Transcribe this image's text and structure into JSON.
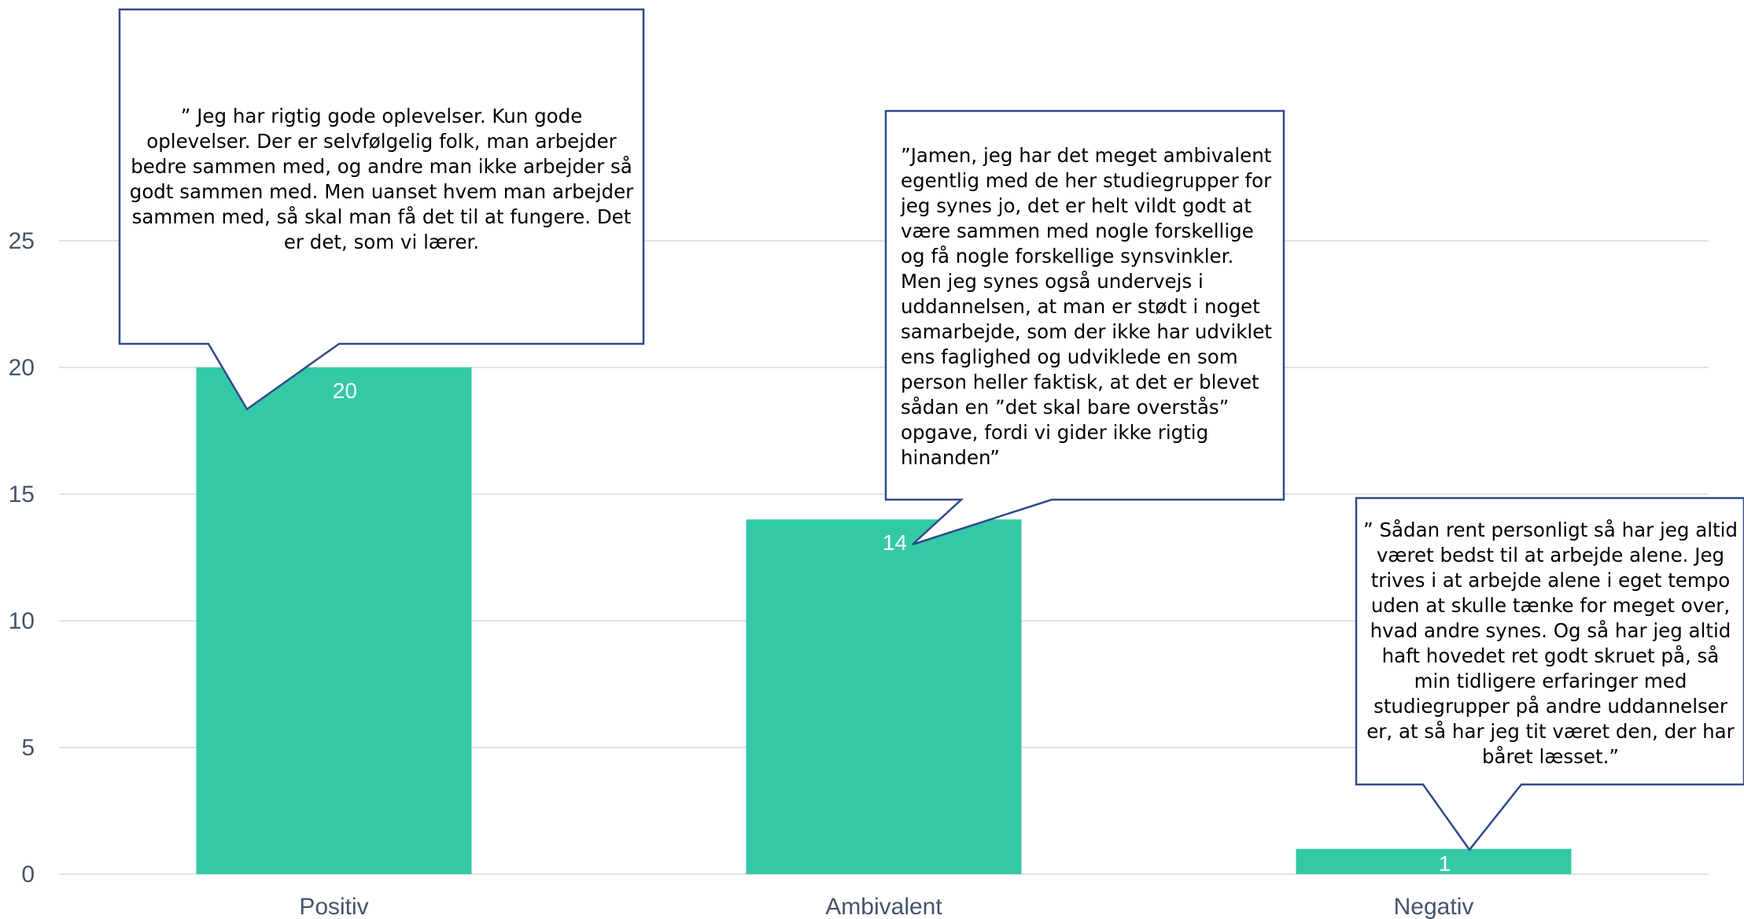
{
  "chart_data": {
    "type": "bar",
    "categories": [
      "Positiv",
      "Ambivalent",
      "Negativ"
    ],
    "values": [
      20,
      14,
      1
    ],
    "data_labels": [
      "20",
      "14",
      "1"
    ],
    "yticks": [
      "0",
      "5",
      "10",
      "15",
      "20",
      "25"
    ],
    "ylim": [
      0,
      25
    ],
    "grid": true,
    "bar_color": "#33c9a7",
    "gridline_color": "#d9d9d9",
    "axis_text_color": "#44546a",
    "callout_border_color": "#2f4a8a"
  },
  "callouts": [
    {
      "category": "Positiv",
      "lines": [
        "” Jeg har rigtig gode oplevelser. Kun gode",
        "oplevelser. Der er selvfølgelig folk, man arbejder",
        "bedre sammen med, og andre man ikke arbejder så",
        "godt sammen med. Men uanset hvem man arbejder",
        "sammen med, så skal man få det til at fungere. Det",
        "er det, som vi lærer."
      ]
    },
    {
      "category": "Ambivalent",
      "lines": [
        "”Jamen, jeg har det meget ambivalent",
        "egentlig med de her studiegrupper for",
        "jeg synes jo, det er helt vildt godt at",
        "være sammen med nogle forskellige",
        "og få nogle forskellige synsvinkler.",
        "Men jeg synes også undervejs i",
        "uddannelsen, at man er stødt i noget",
        "samarbejde, som der ikke har udviklet",
        "ens faglighed og udviklede en som",
        "person heller faktisk, at det er blevet",
        "sådan en ”det skal bare overstås”",
        "opgave, fordi vi gider ikke rigtig",
        "hinanden”"
      ]
    },
    {
      "category": "Negativ",
      "lines": [
        "” Sådan rent personligt så har jeg altid",
        "været bedst til at arbejde alene. Jeg",
        "trives i at arbejde alene i eget tempo",
        "uden at skulle tænke for meget over,",
        "hvad andre synes. Og så har jeg altid",
        "haft hovedet ret godt skruet på, så",
        "min tidligere erfaringer med",
        "studiegrupper på andre uddannelser",
        "er, at så har jeg tit været den, der har",
        "båret læsset.”"
      ]
    }
  ]
}
